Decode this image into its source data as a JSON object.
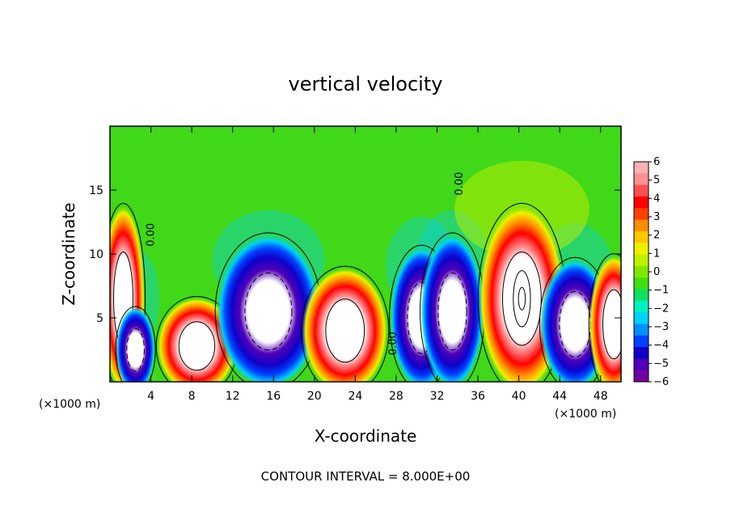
{
  "chart_data": {
    "type": "heatmap",
    "title": "vertical velocity",
    "xlabel": "X-coordinate",
    "ylabel": "Z-coordinate",
    "x_unit_label": "(×1000 m)",
    "x_ticks": [
      "4",
      "8",
      "12",
      "16",
      "20",
      "24",
      "28",
      "32",
      "36",
      "40",
      "44",
      "48"
    ],
    "y_ticks": [
      "5",
      "10",
      "15"
    ],
    "xlim": [
      0,
      50
    ],
    "ylim": [
      0,
      20
    ],
    "colorbar": {
      "ticks": [
        "6",
        "5",
        "4",
        "3",
        "2",
        "1",
        "0",
        "−1",
        "−2",
        "−3",
        "−4",
        "−5",
        "−6"
      ],
      "range": [
        -6,
        6
      ],
      "colors": [
        "#7000a0",
        "#5000b8",
        "#1000c8",
        "#0040ff",
        "#0090ff",
        "#00d0ff",
        "#00f0c0",
        "#10e060",
        "#40e010",
        "#80e800",
        "#c0f000",
        "#f0f000",
        "#ffc800",
        "#ff8c00",
        "#ff4000",
        "#ff0000",
        "#ff5050",
        "#ff9090",
        "#ffb0b0"
      ]
    },
    "contour_label": "0.00",
    "footer": "CONTOUR INTERVAL = 8.000E+00",
    "cells": [
      {
        "x": 1.3,
        "z": 6.5,
        "w": 0.5,
        "sign": 1,
        "amp": 10
      },
      {
        "x": 2.5,
        "z": 2.5,
        "w": 0.3,
        "sign": -1,
        "amp": 8
      },
      {
        "x": 8.5,
        "z": 2.8,
        "w": 2.3,
        "sign": 1,
        "amp": 11
      },
      {
        "x": 15.5,
        "z": 5.5,
        "w": 3.5,
        "sign": -1,
        "amp": 11
      },
      {
        "x": 23.0,
        "z": 4.0,
        "w": 2.6,
        "sign": 1,
        "amp": 11
      },
      {
        "x": 30.5,
        "z": 5.0,
        "w": 1.5,
        "sign": -1,
        "amp": 11
      },
      {
        "x": 33.5,
        "z": 5.5,
        "w": 1.5,
        "sign": -1,
        "amp": 10
      },
      {
        "x": 40.3,
        "z": 6.5,
        "w": 2.6,
        "sign": 1,
        "amp": 14
      },
      {
        "x": 45.5,
        "z": 4.5,
        "w": 1.8,
        "sign": -1,
        "amp": 10
      },
      {
        "x": 49.3,
        "z": 4.5,
        "w": 0.8,
        "sign": 1,
        "amp": 10
      }
    ]
  }
}
